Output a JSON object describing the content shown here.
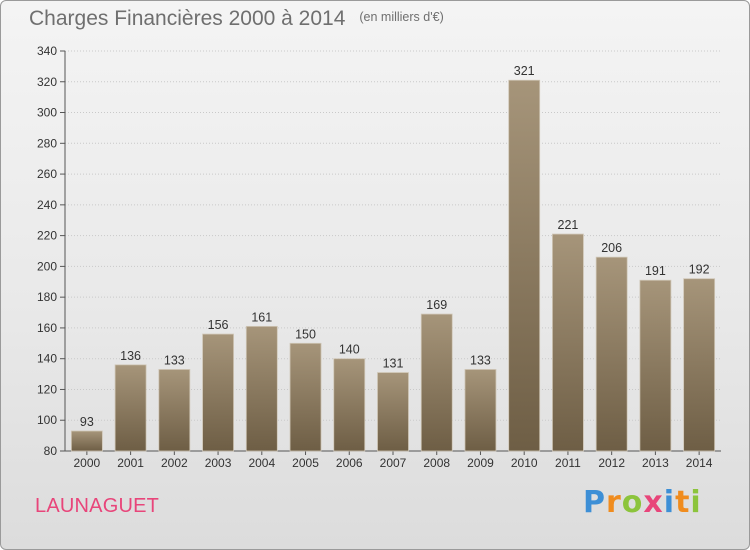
{
  "title": "Charges Financières 2000 à 2014",
  "units": "(en milliers d'€)",
  "commune": "LAUNAGUET",
  "logo": {
    "letters": [
      "P",
      "r",
      "o",
      "x",
      "i",
      "t",
      "i"
    ],
    "colors": [
      "#3d8fd6",
      "#f08c1e",
      "#8cc43c",
      "#e8457a",
      "#3d8fd6",
      "#f08c1e",
      "#8cc43c"
    ]
  },
  "colors": {
    "bar_top": "#a6957a",
    "bar_bottom": "#6e5e45",
    "title": "#6f6f6f",
    "commune": "#e8457a"
  },
  "chart_data": {
    "type": "bar",
    "categories": [
      "2000",
      "2001",
      "2002",
      "2003",
      "2004",
      "2005",
      "2006",
      "2007",
      "2008",
      "2009",
      "2010",
      "2011",
      "2012",
      "2013",
      "2014"
    ],
    "values": [
      93,
      136,
      133,
      156,
      161,
      150,
      140,
      131,
      169,
      133,
      321,
      221,
      206,
      191,
      192
    ],
    "ylim": [
      80,
      340
    ],
    "yticks": [
      80,
      100,
      120,
      140,
      160,
      180,
      200,
      220,
      240,
      260,
      280,
      300,
      320,
      340
    ],
    "grid": true
  }
}
